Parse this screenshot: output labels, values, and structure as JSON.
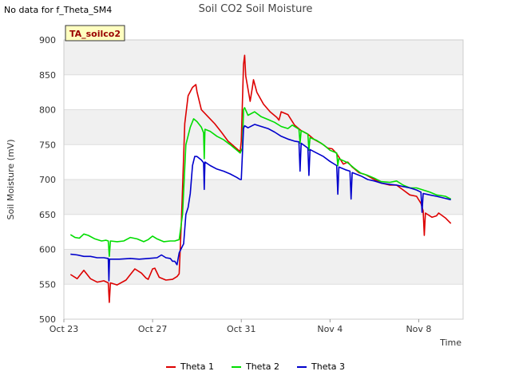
{
  "notice": "No data for f_Theta_SM4",
  "chart_data": {
    "type": "line",
    "title": "Soil CO2 Soil Moisture",
    "xlabel": "Time",
    "ylabel": "Soil Moisture (mV)",
    "tag": "TA_soilco2",
    "ylim": [
      500,
      900
    ],
    "yticks": [
      500,
      550,
      600,
      650,
      700,
      750,
      800,
      850,
      900
    ],
    "xlim": [
      0,
      18
    ],
    "xticks": [
      {
        "day": 0,
        "label": "Oct 23"
      },
      {
        "day": 4,
        "label": "Oct 27"
      },
      {
        "day": 8,
        "label": "Oct 31"
      },
      {
        "day": 12,
        "label": "Nov 4"
      },
      {
        "day": 16,
        "label": "Nov 8"
      }
    ],
    "grid": true,
    "legend_position": "bottom",
    "series": [
      {
        "name": "Theta 1",
        "color": "#dd0000",
        "points": [
          [
            0.3,
            564
          ],
          [
            0.6,
            558
          ],
          [
            0.9,
            570
          ],
          [
            1.2,
            558
          ],
          [
            1.5,
            553
          ],
          [
            1.8,
            555
          ],
          [
            2.0,
            552
          ],
          [
            2.05,
            524
          ],
          [
            2.1,
            552
          ],
          [
            2.4,
            549
          ],
          [
            2.8,
            556
          ],
          [
            3.0,
            564
          ],
          [
            3.2,
            572
          ],
          [
            3.5,
            566
          ],
          [
            3.7,
            559
          ],
          [
            3.8,
            557
          ],
          [
            4.0,
            572
          ],
          [
            4.1,
            573
          ],
          [
            4.3,
            560
          ],
          [
            4.6,
            556
          ],
          [
            4.9,
            557
          ],
          [
            5.1,
            561
          ],
          [
            5.2,
            565
          ],
          [
            5.3,
            640
          ],
          [
            5.45,
            780
          ],
          [
            5.6,
            820
          ],
          [
            5.8,
            832
          ],
          [
            5.95,
            836
          ],
          [
            6.0,
            826
          ],
          [
            6.2,
            800
          ],
          [
            6.5,
            790
          ],
          [
            6.8,
            780
          ],
          [
            7.1,
            768
          ],
          [
            7.4,
            755
          ],
          [
            7.8,
            744
          ],
          [
            7.95,
            740
          ],
          [
            8.0,
            755
          ],
          [
            8.1,
            865
          ],
          [
            8.15,
            878
          ],
          [
            8.2,
            848
          ],
          [
            8.4,
            812
          ],
          [
            8.5,
            832
          ],
          [
            8.55,
            843
          ],
          [
            8.7,
            825
          ],
          [
            9.0,
            808
          ],
          [
            9.3,
            797
          ],
          [
            9.6,
            789
          ],
          [
            9.7,
            785
          ],
          [
            9.8,
            797
          ],
          [
            10.1,
            793
          ],
          [
            10.4,
            778
          ],
          [
            10.7,
            770
          ],
          [
            11.0,
            765
          ],
          [
            11.3,
            757
          ],
          [
            11.6,
            752
          ],
          [
            11.9,
            745
          ],
          [
            12.1,
            744
          ],
          [
            12.3,
            737
          ],
          [
            12.6,
            722
          ],
          [
            12.8,
            725
          ],
          [
            13.0,
            718
          ],
          [
            13.3,
            710
          ],
          [
            13.6,
            707
          ],
          [
            14.0,
            700
          ],
          [
            14.3,
            695
          ],
          [
            14.7,
            692
          ],
          [
            15.0,
            692
          ],
          [
            15.3,
            685
          ],
          [
            15.6,
            678
          ],
          [
            15.9,
            676
          ],
          [
            16.1,
            666
          ],
          [
            16.2,
            655
          ],
          [
            16.25,
            620
          ],
          [
            16.3,
            652
          ],
          [
            16.6,
            646
          ],
          [
            16.8,
            648
          ],
          [
            16.9,
            652
          ],
          [
            17.2,
            645
          ],
          [
            17.45,
            637
          ]
        ]
      },
      {
        "name": "Theta 2",
        "color": "#00dd00",
        "points": [
          [
            0.3,
            621
          ],
          [
            0.5,
            617
          ],
          [
            0.7,
            616
          ],
          [
            0.9,
            622
          ],
          [
            1.1,
            620
          ],
          [
            1.4,
            615
          ],
          [
            1.7,
            612
          ],
          [
            1.9,
            613
          ],
          [
            2.0,
            612
          ],
          [
            2.05,
            590
          ],
          [
            2.1,
            612
          ],
          [
            2.4,
            611
          ],
          [
            2.7,
            612
          ],
          [
            3.0,
            617
          ],
          [
            3.3,
            615
          ],
          [
            3.6,
            611
          ],
          [
            3.8,
            614
          ],
          [
            4.0,
            619
          ],
          [
            4.2,
            615
          ],
          [
            4.5,
            611
          ],
          [
            4.8,
            612
          ],
          [
            5.0,
            612
          ],
          [
            5.2,
            614
          ],
          [
            5.35,
            650
          ],
          [
            5.5,
            750
          ],
          [
            5.7,
            775
          ],
          [
            5.85,
            787
          ],
          [
            6.0,
            783
          ],
          [
            6.2,
            775
          ],
          [
            6.3,
            767
          ],
          [
            6.33,
            730
          ],
          [
            6.36,
            772
          ],
          [
            6.6,
            769
          ],
          [
            6.9,
            762
          ],
          [
            7.2,
            757
          ],
          [
            7.5,
            750
          ],
          [
            7.8,
            742
          ],
          [
            7.95,
            738
          ],
          [
            8.05,
            745
          ],
          [
            8.1,
            800
          ],
          [
            8.15,
            803
          ],
          [
            8.3,
            792
          ],
          [
            8.6,
            797
          ],
          [
            8.9,
            790
          ],
          [
            9.2,
            786
          ],
          [
            9.5,
            782
          ],
          [
            9.8,
            776
          ],
          [
            10.1,
            773
          ],
          [
            10.3,
            778
          ],
          [
            10.6,
            772
          ],
          [
            10.65,
            752
          ],
          [
            10.7,
            770
          ],
          [
            11.0,
            765
          ],
          [
            11.05,
            742
          ],
          [
            11.1,
            760
          ],
          [
            11.4,
            756
          ],
          [
            11.7,
            750
          ],
          [
            12.0,
            742
          ],
          [
            12.3,
            738
          ],
          [
            12.35,
            720
          ],
          [
            12.4,
            730
          ],
          [
            12.8,
            724
          ],
          [
            13.1,
            716
          ],
          [
            13.4,
            709
          ],
          [
            13.7,
            706
          ],
          [
            14.0,
            702
          ],
          [
            14.3,
            697
          ],
          [
            14.7,
            696
          ],
          [
            15.0,
            698
          ],
          [
            15.3,
            692
          ],
          [
            15.6,
            688
          ],
          [
            15.9,
            688
          ],
          [
            16.2,
            685
          ],
          [
            16.5,
            682
          ],
          [
            16.8,
            678
          ],
          [
            17.2,
            676
          ],
          [
            17.45,
            672
          ]
        ]
      },
      {
        "name": "Theta 3",
        "color": "#0000cc",
        "points": [
          [
            0.3,
            593
          ],
          [
            0.6,
            592
          ],
          [
            0.9,
            590
          ],
          [
            1.2,
            590
          ],
          [
            1.5,
            588
          ],
          [
            1.8,
            588
          ],
          [
            2.0,
            587
          ],
          [
            2.03,
            555
          ],
          [
            2.06,
            586
          ],
          [
            2.5,
            586
          ],
          [
            3.0,
            587
          ],
          [
            3.4,
            586
          ],
          [
            3.8,
            587
          ],
          [
            4.2,
            588
          ],
          [
            4.4,
            592
          ],
          [
            4.6,
            588
          ],
          [
            4.8,
            587
          ],
          [
            4.9,
            583
          ],
          [
            5.0,
            583
          ],
          [
            5.1,
            578
          ],
          [
            5.2,
            595
          ],
          [
            5.4,
            608
          ],
          [
            5.5,
            650
          ],
          [
            5.6,
            660
          ],
          [
            5.7,
            680
          ],
          [
            5.8,
            720
          ],
          [
            5.9,
            733
          ],
          [
            6.0,
            733
          ],
          [
            6.2,
            728
          ],
          [
            6.3,
            724
          ],
          [
            6.33,
            686
          ],
          [
            6.36,
            725
          ],
          [
            6.6,
            720
          ],
          [
            6.9,
            715
          ],
          [
            7.2,
            712
          ],
          [
            7.5,
            708
          ],
          [
            7.8,
            703
          ],
          [
            7.95,
            700
          ],
          [
            8.0,
            700
          ],
          [
            8.1,
            773
          ],
          [
            8.15,
            777
          ],
          [
            8.3,
            774
          ],
          [
            8.6,
            779
          ],
          [
            8.9,
            776
          ],
          [
            9.2,
            773
          ],
          [
            9.5,
            768
          ],
          [
            9.8,
            762
          ],
          [
            10.1,
            758
          ],
          [
            10.4,
            755
          ],
          [
            10.6,
            754
          ],
          [
            10.65,
            712
          ],
          [
            10.7,
            752
          ],
          [
            11.0,
            745
          ],
          [
            11.05,
            706
          ],
          [
            11.1,
            743
          ],
          [
            11.4,
            738
          ],
          [
            11.7,
            733
          ],
          [
            12.0,
            726
          ],
          [
            12.3,
            720
          ],
          [
            12.35,
            679
          ],
          [
            12.4,
            718
          ],
          [
            12.7,
            714
          ],
          [
            12.9,
            712
          ],
          [
            12.95,
            672
          ],
          [
            13.0,
            710
          ],
          [
            13.4,
            705
          ],
          [
            13.7,
            700
          ],
          [
            14.0,
            698
          ],
          [
            14.3,
            695
          ],
          [
            14.7,
            693
          ],
          [
            15.0,
            692
          ],
          [
            15.3,
            690
          ],
          [
            15.6,
            688
          ],
          [
            15.9,
            685
          ],
          [
            16.1,
            682
          ],
          [
            16.15,
            653
          ],
          [
            16.2,
            680
          ],
          [
            16.5,
            678
          ],
          [
            16.8,
            676
          ],
          [
            17.2,
            673
          ],
          [
            17.45,
            671
          ]
        ]
      }
    ]
  }
}
